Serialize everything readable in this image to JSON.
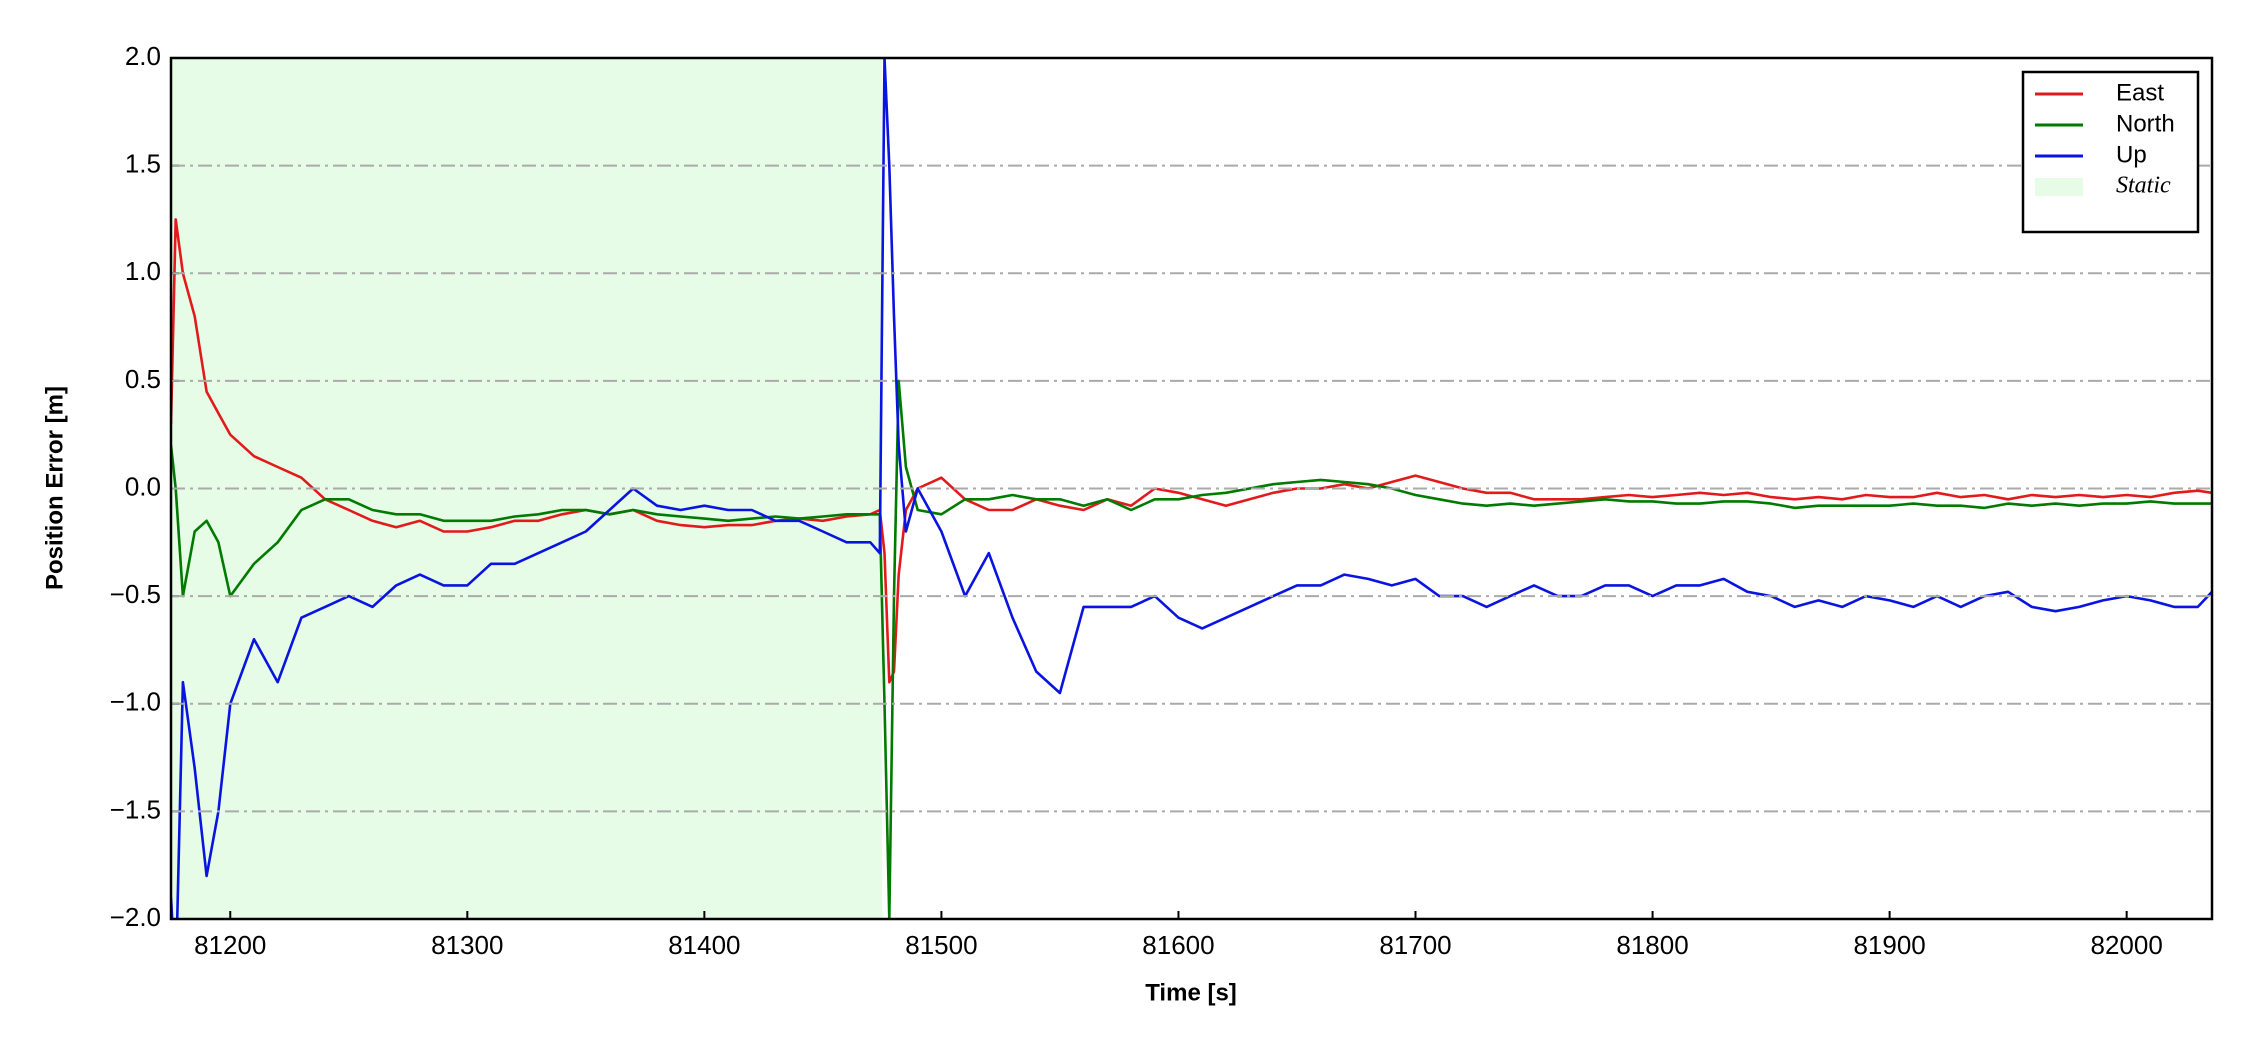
{
  "chart_data": {
    "type": "line",
    "xlabel": "Time [s]",
    "ylabel": "Position Error [m]",
    "xlim": [
      81175,
      82036
    ],
    "ylim": [
      -2,
      2
    ],
    "xticks": [
      81200,
      81300,
      81400,
      81500,
      81600,
      81700,
      81800,
      81900,
      82000
    ],
    "yticks": [
      {
        "value": -2,
        "label": "−2.0"
      },
      {
        "value": -1.5,
        "label": "−1.5"
      },
      {
        "value": -1,
        "label": "−1.0"
      },
      {
        "value": -0.5,
        "label": "−0.5"
      },
      {
        "value": 0,
        "label": "0.0"
      },
      0.5,
      {
        "value": 1,
        "label": "1.0"
      },
      1.5,
      {
        "value": 2,
        "label": "2.0"
      }
    ],
    "grid": true,
    "legend": "upper right",
    "x": [
      81175,
      81177,
      81180,
      81185,
      81190,
      81195,
      81200,
      81210,
      81220,
      81230,
      81240,
      81250,
      81260,
      81270,
      81280,
      81290,
      81300,
      81310,
      81320,
      81330,
      81340,
      81350,
      81360,
      81370,
      81380,
      81390,
      81400,
      81410,
      81420,
      81430,
      81440,
      81450,
      81460,
      81470,
      81474,
      81476,
      81478,
      81480,
      81482,
      81485,
      81490,
      81500,
      81510,
      81520,
      81530,
      81540,
      81550,
      81560,
      81570,
      81580,
      81590,
      81600,
      81610,
      81620,
      81630,
      81640,
      81650,
      81660,
      81670,
      81680,
      81690,
      81700,
      81710,
      81720,
      81730,
      81740,
      81750,
      81760,
      81770,
      81780,
      81790,
      81800,
      81810,
      81820,
      81830,
      81840,
      81850,
      81860,
      81870,
      81880,
      81890,
      81900,
      81910,
      81920,
      81930,
      81940,
      81950,
      81960,
      81970,
      81980,
      81990,
      82000,
      82010,
      82020,
      82030,
      82036
    ],
    "series": [
      {
        "name": "East",
        "color": "#e31a1c",
        "values": [
          0.3,
          1.25,
          1.0,
          0.8,
          0.45,
          0.35,
          0.25,
          0.15,
          0.1,
          0.05,
          -0.05,
          -0.1,
          -0.15,
          -0.18,
          -0.15,
          -0.2,
          -0.2,
          -0.18,
          -0.15,
          -0.15,
          -0.12,
          -0.1,
          -0.12,
          -0.1,
          -0.15,
          -0.17,
          -0.18,
          -0.17,
          -0.17,
          -0.15,
          -0.14,
          -0.15,
          -0.13,
          -0.12,
          -0.1,
          -0.3,
          -0.9,
          -0.85,
          -0.4,
          -0.1,
          0.0,
          0.05,
          -0.05,
          -0.1,
          -0.1,
          -0.05,
          -0.08,
          -0.1,
          -0.05,
          -0.08,
          0.0,
          -0.02,
          -0.05,
          -0.08,
          -0.05,
          -0.02,
          0.0,
          0.0,
          0.02,
          0.0,
          0.03,
          0.06,
          0.03,
          0.0,
          -0.02,
          -0.02,
          -0.05,
          -0.05,
          -0.05,
          -0.04,
          -0.03,
          -0.04,
          -0.03,
          -0.02,
          -0.03,
          -0.02,
          -0.04,
          -0.05,
          -0.04,
          -0.05,
          -0.03,
          -0.04,
          -0.04,
          -0.02,
          -0.04,
          -0.03,
          -0.05,
          -0.03,
          -0.04,
          -0.03,
          -0.04,
          -0.03,
          -0.04,
          -0.02,
          -0.01,
          -0.02
        ]
      },
      {
        "name": "North",
        "color": "#007a00",
        "values": [
          0.2,
          0.0,
          -0.5,
          -0.2,
          -0.15,
          -0.25,
          -0.5,
          -0.35,
          -0.25,
          -0.1,
          -0.05,
          -0.05,
          -0.1,
          -0.12,
          -0.12,
          -0.15,
          -0.15,
          -0.15,
          -0.13,
          -0.12,
          -0.1,
          -0.1,
          -0.12,
          -0.1,
          -0.12,
          -0.13,
          -0.14,
          -0.15,
          -0.14,
          -0.13,
          -0.14,
          -0.13,
          -0.12,
          -0.12,
          -0.12,
          -1.0,
          -2.0,
          -0.5,
          0.5,
          0.1,
          -0.1,
          -0.12,
          -0.05,
          -0.05,
          -0.03,
          -0.05,
          -0.05,
          -0.08,
          -0.05,
          -0.1,
          -0.05,
          -0.05,
          -0.03,
          -0.02,
          0.0,
          0.02,
          0.03,
          0.04,
          0.03,
          0.02,
          0.0,
          -0.03,
          -0.05,
          -0.07,
          -0.08,
          -0.07,
          -0.08,
          -0.07,
          -0.06,
          -0.05,
          -0.06,
          -0.06,
          -0.07,
          -0.07,
          -0.06,
          -0.06,
          -0.07,
          -0.09,
          -0.08,
          -0.08,
          -0.08,
          -0.08,
          -0.07,
          -0.08,
          -0.08,
          -0.09,
          -0.07,
          -0.08,
          -0.07,
          -0.08,
          -0.07,
          -0.07,
          -0.06,
          -0.07,
          -0.07,
          -0.07
        ]
      },
      {
        "name": "Up",
        "color": "#0a14e0",
        "values": [
          -1.9,
          -2.3,
          -0.9,
          -1.3,
          -1.8,
          -1.5,
          -1.0,
          -0.7,
          -0.9,
          -0.6,
          -0.55,
          -0.5,
          -0.55,
          -0.45,
          -0.4,
          -0.45,
          -0.45,
          -0.35,
          -0.35,
          -0.3,
          -0.25,
          -0.2,
          -0.1,
          0.0,
          -0.08,
          -0.1,
          -0.08,
          -0.1,
          -0.1,
          -0.15,
          -0.15,
          -0.2,
          -0.25,
          -0.25,
          -0.3,
          2.0,
          1.5,
          0.8,
          0.2,
          -0.2,
          0.0,
          -0.2,
          -0.5,
          -0.3,
          -0.6,
          -0.85,
          -0.95,
          -0.55,
          -0.55,
          -0.55,
          -0.5,
          -0.6,
          -0.65,
          -0.6,
          -0.55,
          -0.5,
          -0.45,
          -0.45,
          -0.4,
          -0.42,
          -0.45,
          -0.42,
          -0.5,
          -0.5,
          -0.55,
          -0.5,
          -0.45,
          -0.5,
          -0.5,
          -0.45,
          -0.45,
          -0.5,
          -0.45,
          -0.45,
          -0.42,
          -0.48,
          -0.5,
          -0.55,
          -0.52,
          -0.55,
          -0.5,
          -0.52,
          -0.55,
          -0.5,
          -0.55,
          -0.5,
          -0.48,
          -0.55,
          -0.57,
          -0.55,
          -0.52,
          -0.5,
          -0.52,
          -0.55,
          -0.55,
          -0.48
        ]
      }
    ],
    "spans": [
      {
        "name": "Static",
        "color": "#e6fce6",
        "xrange": [
          81175,
          81475
        ]
      }
    ]
  }
}
